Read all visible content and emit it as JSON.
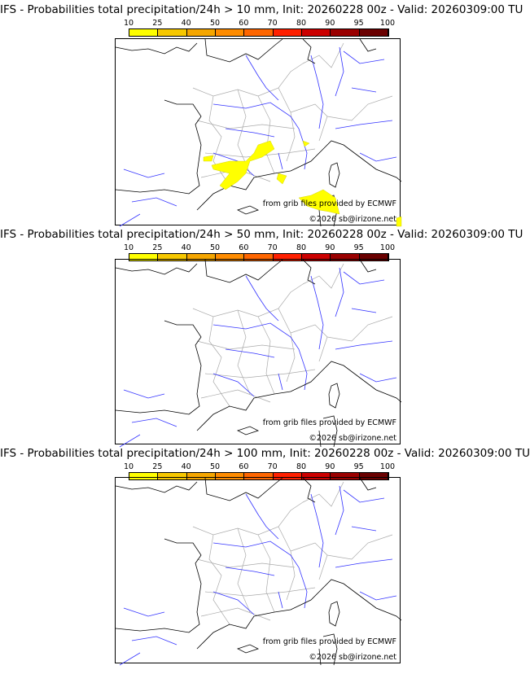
{
  "panels": [
    {
      "title": "IFS - Probabilities total precipitation/24h > 10 mm, Init: 20260228 00z - Valid: 20260309:00 TU",
      "has_precip": true
    },
    {
      "title": "IFS - Probabilities total precipitation/24h > 50 mm, Init: 20260228 00z - Valid: 20260309:00 TU",
      "has_precip": false
    },
    {
      "title": "IFS - Probabilities total precipitation/24h > 100 mm, Init: 20260228 00z - Valid: 20260309:00 TU",
      "has_precip": false
    }
  ],
  "colorbar": {
    "labels": [
      "10",
      "25",
      "40",
      "50",
      "60",
      "70",
      "80",
      "90",
      "95",
      "100"
    ],
    "colors": [
      "#ffff00",
      "#f7c800",
      "#f5a600",
      "#ff8c00",
      "#ff6600",
      "#ff2000",
      "#cc0000",
      "#9a0000",
      "#6a0000"
    ]
  },
  "credits": {
    "source": "from grib files provided by ECMWF",
    "copyright": "©2026 sb@irizone.net"
  },
  "colors": {
    "coast": "#000000",
    "rivers": "#3333ff",
    "borders": "#aaaaaa",
    "precip": "#ffff00"
  }
}
